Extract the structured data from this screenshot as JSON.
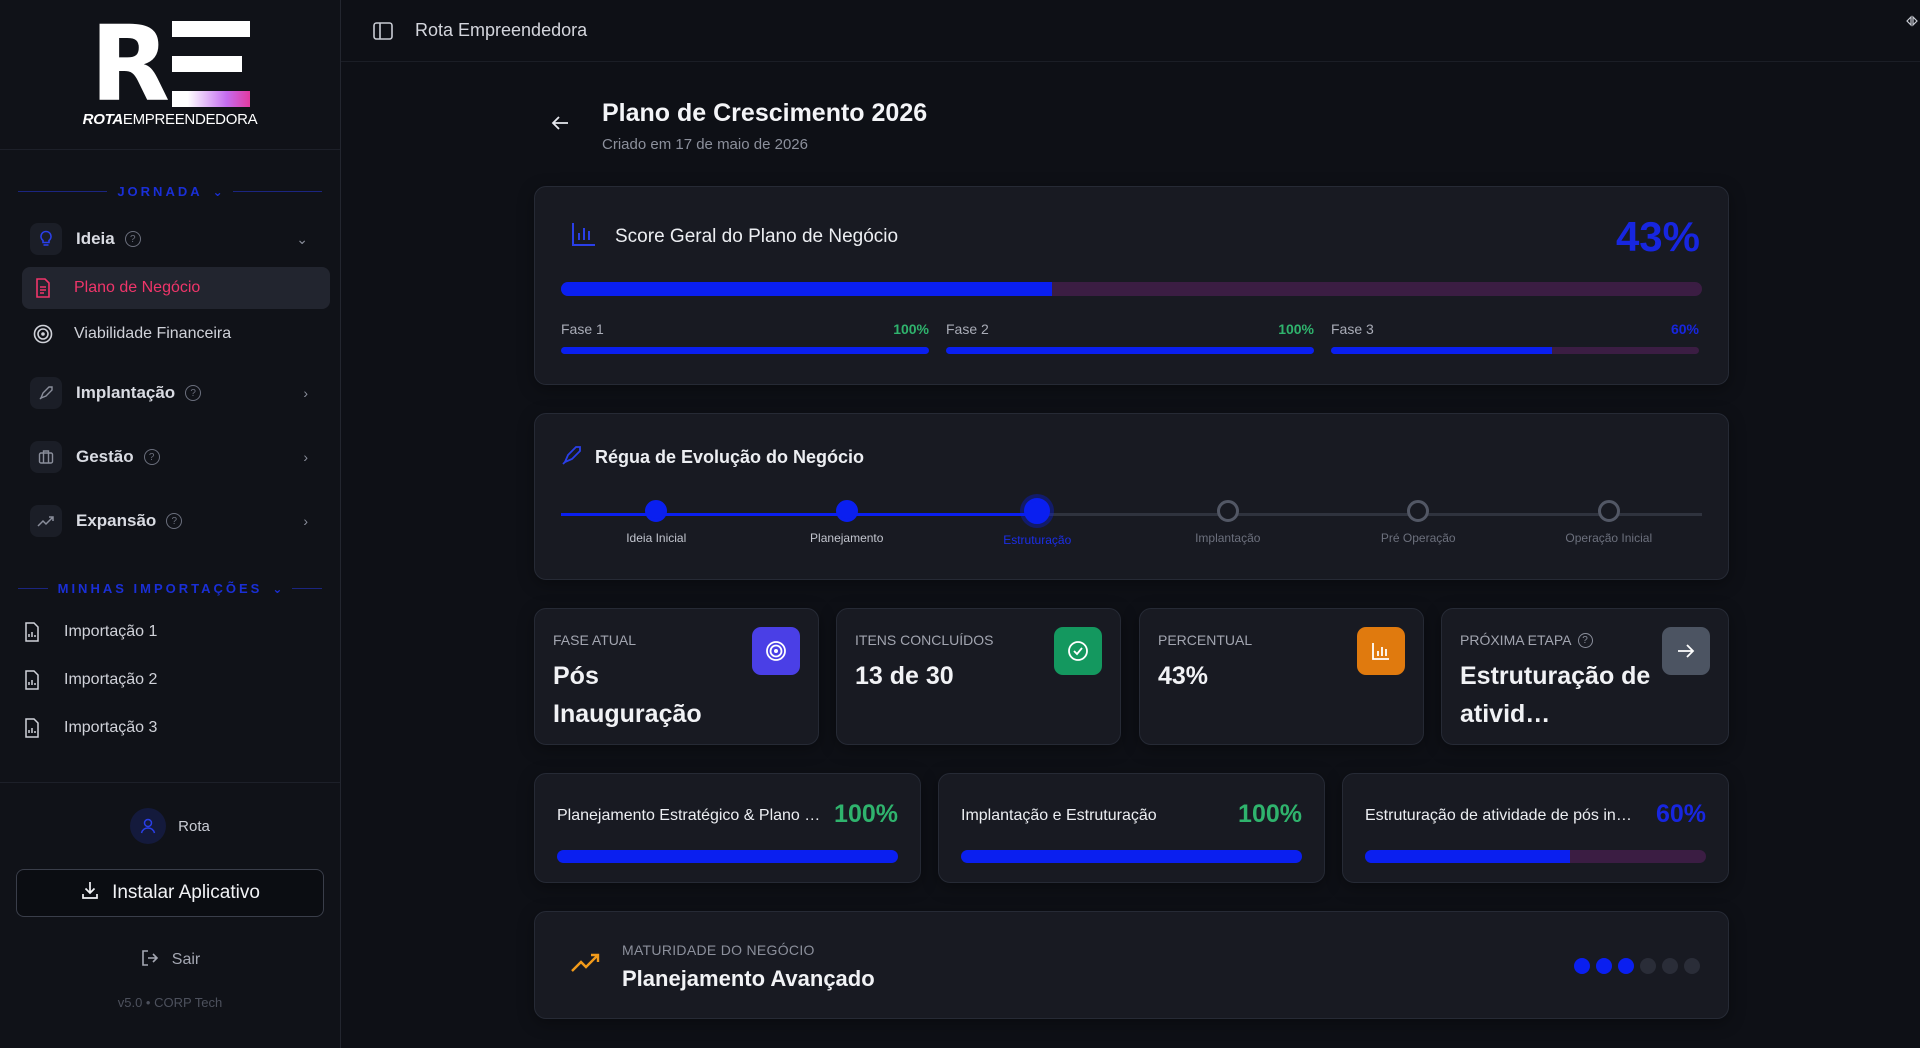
{
  "app": {
    "brand_word1": "ROTA",
    "brand_word2": "EMPREENDEDORA",
    "topbar_title": "Rota Empreendedora"
  },
  "sidebar": {
    "section_jornada": "JORNADA",
    "groups": [
      {
        "label": "Ideia",
        "icon": "lightbulb-icon",
        "expanded": true
      },
      {
        "label": "Implantação",
        "icon": "rocket-icon"
      },
      {
        "label": "Gestão",
        "icon": "briefcase-icon"
      },
      {
        "label": "Expansão",
        "icon": "trending-up-icon"
      }
    ],
    "ideia_items": [
      {
        "label": "Plano de Negócio",
        "icon": "document-icon",
        "active": true
      },
      {
        "label": "Viabilidade Financeira",
        "icon": "target-icon"
      }
    ],
    "section_importacoes": "MINHAS IMPORTAÇÕES",
    "imports": [
      {
        "label": "Importação 1"
      },
      {
        "label": "Importação 2"
      },
      {
        "label": "Importação 3"
      }
    ],
    "user_name": "Rota",
    "install_label": "Instalar Aplicativo",
    "logout_label": "Sair",
    "version": "v5.0 • CORP Tech"
  },
  "page": {
    "title": "Plano de Crescimento 2026",
    "subtitle": "Criado em 17 de maio de 2026"
  },
  "score": {
    "title": "Score Geral do Plano de Negócio",
    "value_label": "43%",
    "value": 43,
    "phases": [
      {
        "label": "Fase 1",
        "pct_label": "100%",
        "value": 100,
        "color": "#2fb36d"
      },
      {
        "label": "Fase 2",
        "pct_label": "100%",
        "value": 100,
        "color": "#2fb36d"
      },
      {
        "label": "Fase 3",
        "pct_label": "60%",
        "value": 60,
        "color": "#1726e0"
      }
    ]
  },
  "regua": {
    "title": "Régua de Evolução do Negócio",
    "steps": [
      {
        "name": "Ideia Inicial",
        "state": "done"
      },
      {
        "name": "Planejamento",
        "state": "done"
      },
      {
        "name": "Estruturação",
        "state": "current"
      },
      {
        "name": "Implantação",
        "state": "todo"
      },
      {
        "name": "Pré Operação",
        "state": "todo"
      },
      {
        "name": "Operação Inicial",
        "state": "todo"
      }
    ]
  },
  "stats": [
    {
      "label": "FASE ATUAL",
      "value": "Pós Inauguração",
      "icon": "target-icon",
      "color": "#4a3fe6"
    },
    {
      "label": "ITENS CONCLUÍDOS",
      "value": "13 de 30",
      "icon": "check-circle-icon",
      "color": "#14985f"
    },
    {
      "label": "PERCENTUAL",
      "value": "43%",
      "icon": "bar-chart-icon",
      "color": "#e07a0e"
    },
    {
      "label": "PRÓXIMA ETAPA",
      "value": "Estruturação de ativid…",
      "icon": "arrow-right-icon",
      "color": "#4c5462",
      "help": true
    }
  ],
  "phase_cards": [
    {
      "title": "Planejamento Estratégico & Plano de Negócio",
      "pct_label": "100%",
      "value": 100,
      "color": "#2fb36d"
    },
    {
      "title": "Implantação e Estruturação",
      "pct_label": "100%",
      "value": 100,
      "color": "#2fb36d"
    },
    {
      "title": "Estruturação de atividade de pós inauguração",
      "pct_label": "60%",
      "value": 60,
      "color": "#1726e0"
    }
  ],
  "maturity": {
    "label": "MATURIDADE DO NEGÓCIO",
    "value": "Planejamento Avançado",
    "level": 3,
    "max": 6
  }
}
